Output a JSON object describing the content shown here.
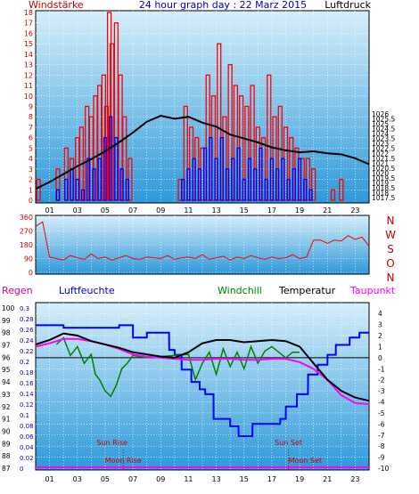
{
  "colors": {
    "wind": "#ff0000",
    "gust": "#0000ff",
    "pressure": "#000000",
    "humidity": "#0000ff",
    "windchill": "#008000",
    "temperature": "#000000",
    "dewpoint": "#ff00ff",
    "rain": "#cc0099",
    "grid": "#ffffff",
    "sunmoon": "#cc0000",
    "plot_top": "#cbe6f7",
    "plot_bottom": "#3aa0dc"
  },
  "chart_data": [
    {
      "type": "bar",
      "title": "24 hour graph day : 22 Marz 2015",
      "left_label": "Windstärke",
      "right_label": "Luftdruck",
      "x_ticks": [
        "01",
        "03",
        "05",
        "07",
        "09",
        "11",
        "13",
        "15",
        "17",
        "19",
        "21",
        "23"
      ],
      "x_range": [
        0,
        24
      ],
      "ylim_left": [
        0,
        18
      ],
      "y_ticks_left": [
        0,
        1,
        2,
        3,
        4,
        5,
        6,
        7,
        8,
        9,
        10,
        11,
        12,
        13,
        14,
        15,
        16,
        17,
        18
      ],
      "ylim_right": [
        1017.25,
        1036.25
      ],
      "y_ticks_right": [
        "1017.5",
        "1018",
        "1018.5",
        "1019",
        "1019.5",
        "1020",
        "1020.5",
        "1021",
        "1021.5",
        "1022",
        "1022.5",
        "1023",
        "1023.5",
        "1024",
        "1024.5",
        "1025",
        "1025.5",
        "1026"
      ],
      "series": [
        {
          "name": "Wind",
          "kind": "bars",
          "x": [
            0.2,
            0.8,
            1.6,
            2.2,
            2.6,
            3.0,
            3.3,
            3.7,
            4.0,
            4.3,
            4.6,
            4.9,
            5.1,
            5.3,
            5.5,
            5.8,
            6.1,
            6.4,
            6.8,
            10.4,
            10.8,
            11.2,
            11.6,
            12.0,
            12.4,
            12.8,
            13.2,
            13.6,
            14.0,
            14.4,
            14.8,
            15.2,
            15.6,
            16.0,
            16.4,
            16.8,
            17.2,
            17.6,
            18.0,
            18.4,
            18.8,
            19.2,
            19.6,
            20.0,
            21.4,
            22.0
          ],
          "values": [
            2,
            0,
            3,
            5,
            4,
            6,
            7,
            9,
            8,
            10,
            11,
            12,
            9,
            18,
            15,
            17,
            12,
            8,
            4,
            2,
            9,
            7,
            6,
            5,
            12,
            10,
            15,
            8,
            13,
            11,
            10,
            9,
            11,
            7,
            6,
            12,
            8,
            9,
            7,
            6,
            5,
            4,
            4,
            3,
            1,
            2
          ]
        },
        {
          "name": "Gust",
          "kind": "bars",
          "x": [
            1.6,
            2.2,
            2.6,
            3.0,
            3.4,
            3.8,
            4.2,
            4.6,
            5.0,
            5.4,
            5.8,
            6.2,
            6.6,
            10.6,
            11.0,
            11.4,
            11.8,
            12.2,
            12.6,
            13.0,
            13.4,
            13.8,
            14.2,
            14.6,
            15.0,
            15.4,
            15.8,
            16.2,
            16.6,
            17.0,
            17.4,
            17.8,
            18.2,
            18.6,
            19.0,
            19.4,
            19.8
          ],
          "values": [
            1,
            2,
            3,
            2,
            1,
            4,
            3,
            4,
            6,
            8,
            6,
            3,
            2,
            2,
            3,
            4,
            3,
            5,
            6,
            4,
            6,
            3,
            4,
            5,
            2,
            4,
            3,
            5,
            2,
            4,
            3,
            4,
            2,
            3,
            4,
            2,
            1
          ]
        },
        {
          "name": "Luftdruck",
          "kind": "line",
          "axis": "right",
          "x": [
            0,
            1,
            2,
            3,
            4,
            5,
            6,
            7,
            8,
            9,
            10,
            11,
            12,
            13,
            14,
            15,
            16,
            17,
            18,
            19,
            20,
            21,
            22,
            23,
            24
          ],
          "values": [
            1018.4,
            1019.1,
            1019.9,
            1020.7,
            1021.4,
            1022.2,
            1023.1,
            1024.1,
            1025.2,
            1025.8,
            1025.5,
            1025.7,
            1025.1,
            1024.7,
            1023.9,
            1023.5,
            1023.1,
            1022.6,
            1022.3,
            1022.1,
            1022.2,
            1022.0,
            1021.9,
            1021.5,
            1020.9
          ]
        }
      ]
    },
    {
      "type": "line",
      "x_ticks": [],
      "x_range": [
        0,
        24
      ],
      "ylim": [
        0,
        360
      ],
      "y_ticks": [
        0,
        90,
        180,
        270,
        360
      ],
      "compass_labels": [
        "N",
        "W",
        "S",
        "O",
        "N"
      ],
      "series": [
        {
          "name": "Windrichtung",
          "x": [
            0,
            0.5,
            1.0,
            1.5,
            2.0,
            2.5,
            3.0,
            3.5,
            4.0,
            4.5,
            5.0,
            5.5,
            6.0,
            6.5,
            7.0,
            7.5,
            8.0,
            8.5,
            9.0,
            9.5,
            10.0,
            10.5,
            11.0,
            11.5,
            12.0,
            12.5,
            13.0,
            13.5,
            14.0,
            14.5,
            15.0,
            15.5,
            16.0,
            16.5,
            17.0,
            17.5,
            18.0,
            18.5,
            19.0,
            19.5,
            20.0,
            20.5,
            21.0,
            21.5,
            22.0,
            22.5,
            23.0,
            23.5,
            24.0
          ],
          "values": [
            300,
            330,
            100,
            90,
            80,
            110,
            95,
            85,
            120,
            90,
            100,
            80,
            95,
            110,
            90,
            85,
            100,
            95,
            90,
            110,
            85,
            95,
            100,
            90,
            115,
            85,
            95,
            105,
            80,
            100,
            90,
            110,
            95,
            85,
            100,
            90,
            95,
            115,
            90,
            100,
            210,
            210,
            190,
            210,
            205,
            240,
            215,
            230,
            170
          ]
        }
      ]
    },
    {
      "type": "line",
      "left_label": "Regen",
      "left2_label": "Luftfeuchte",
      "center_label": "Windchill",
      "right_label": "Temperatur",
      "right2_label": "Taupunkt",
      "x_ticks": [
        "01",
        "03",
        "05",
        "07",
        "09",
        "11",
        "13",
        "15",
        "17",
        "19",
        "21",
        "23"
      ],
      "x_range": [
        0,
        24
      ],
      "ylim_temp": [
        -10,
        4.5
      ],
      "y_ticks_temp": [
        "4",
        "3",
        "2",
        "1",
        "0",
        "-1",
        "-2",
        "-3",
        "-4",
        "-5",
        "-6",
        "-7",
        "-8",
        "-9",
        "-10"
      ],
      "y_ticks_hum": [
        "100",
        "99",
        "98",
        "97",
        "96",
        "95",
        "94",
        "93",
        "92",
        "91",
        "90",
        "89",
        "88",
        "87"
      ],
      "y_ticks_rain": [
        "0.3",
        "0.28",
        "0.26",
        "0.24",
        "0.22",
        "0.2",
        "0.18",
        "0.16",
        "0.14",
        "0.12",
        "0.1",
        "0.08",
        "0.06",
        "0.04",
        "0.02",
        "0"
      ],
      "series": [
        {
          "name": "Temperatur",
          "x": [
            0,
            1,
            2,
            3,
            4,
            5,
            6,
            7,
            8,
            9,
            10,
            11,
            12,
            13,
            14,
            15,
            16,
            17,
            18,
            19,
            20,
            21,
            22,
            23,
            24
          ],
          "values": [
            1.2,
            1.6,
            2.2,
            2.0,
            1.5,
            1.2,
            0.9,
            0.5,
            0.3,
            0.1,
            0.0,
            0.5,
            1.3,
            1.6,
            1.6,
            1.4,
            1.5,
            1.6,
            1.5,
            1.0,
            -0.5,
            -2.0,
            -3.0,
            -3.6,
            -3.9
          ]
        },
        {
          "name": "Taupunkt",
          "x": [
            0,
            1,
            2,
            3,
            4,
            5,
            6,
            7,
            8,
            9,
            10,
            11,
            12,
            13,
            14,
            15,
            16,
            17,
            18,
            19,
            20,
            21,
            22,
            23,
            24
          ],
          "values": [
            1.0,
            1.3,
            1.7,
            1.7,
            1.5,
            1.2,
            0.8,
            0.3,
            0.1,
            0.0,
            -0.1,
            -0.2,
            -0.2,
            -0.1,
            -0.1,
            -0.2,
            -0.2,
            -0.1,
            -0.1,
            -0.4,
            -1.0,
            -2.0,
            -3.4,
            -4.1,
            -4.2
          ]
        },
        {
          "name": "Windchill",
          "x": [
            1.5,
            2.0,
            2.5,
            3.0,
            3.5,
            4.0,
            4.3,
            4.6,
            5.0,
            5.4,
            5.8,
            6.2,
            6.6,
            7.0,
            7.5,
            8.0,
            11.0,
            11.5,
            12.0,
            12.5,
            13.0,
            13.5,
            14.0,
            14.5,
            15.0,
            15.5,
            16.0,
            16.5,
            17.0,
            17.5,
            18.0,
            18.5,
            19.0
          ],
          "values": [
            1.2,
            1.8,
            0.2,
            1.0,
            -0.5,
            0.3,
            -1.5,
            -2.0,
            -3.0,
            -3.5,
            -2.5,
            -1.0,
            -0.5,
            0.2,
            0.1,
            0.0,
            0.3,
            -2.0,
            -0.5,
            0.5,
            -1.5,
            0.8,
            -0.8,
            0.5,
            -1.0,
            1.0,
            -0.5,
            0.6,
            1.0,
            0.5,
            0.0,
            0.5,
            0.5
          ]
        },
        {
          "name": "Luftfeuchte",
          "x": [
            0,
            2,
            2.01,
            6,
            6.01,
            7,
            7.01,
            8,
            8.01,
            9.6,
            9.61,
            10,
            10.01,
            10.5,
            10.51,
            11.2,
            11.21,
            11.8,
            11.81,
            12.2,
            12.21,
            12.8,
            12.81,
            14.0,
            14.01,
            14.6,
            14.61,
            15.6,
            15.61,
            17.6,
            17.61,
            18.0,
            18.01,
            18.8,
            18.81,
            19.6,
            19.61,
            20.3,
            20.31,
            21.0,
            21.01,
            21.6,
            21.61,
            22.6,
            22.61,
            23.3,
            23.31,
            24
          ],
          "values": [
            98.6,
            98.6,
            98.4,
            98.4,
            98.6,
            98.6,
            97.6,
            97.6,
            98.0,
            98.0,
            96.6,
            96.6,
            96.2,
            96.2,
            95.0,
            95.0,
            94.0,
            94.0,
            93.4,
            93.4,
            93.0,
            93.0,
            91.0,
            91.0,
            90.4,
            90.4,
            89.6,
            89.6,
            90.6,
            90.6,
            91.0,
            91.0,
            92.0,
            92.0,
            93.0,
            93.0,
            94.6,
            94.6,
            95.4,
            95.4,
            96.2,
            96.2,
            97.0,
            97.0,
            97.6,
            97.6,
            98.0,
            98.0
          ]
        }
      ],
      "annotations": {
        "sun_rise": {
          "label": "Sun Rise",
          "x": 5.5
        },
        "moon_rise": {
          "label": "Moon Rise",
          "x": 6.3
        },
        "sun_set": {
          "label": "Sun Set",
          "x": 18.2
        },
        "moon_set": {
          "label": "Moon Set",
          "x": 19.4
        }
      }
    }
  ]
}
